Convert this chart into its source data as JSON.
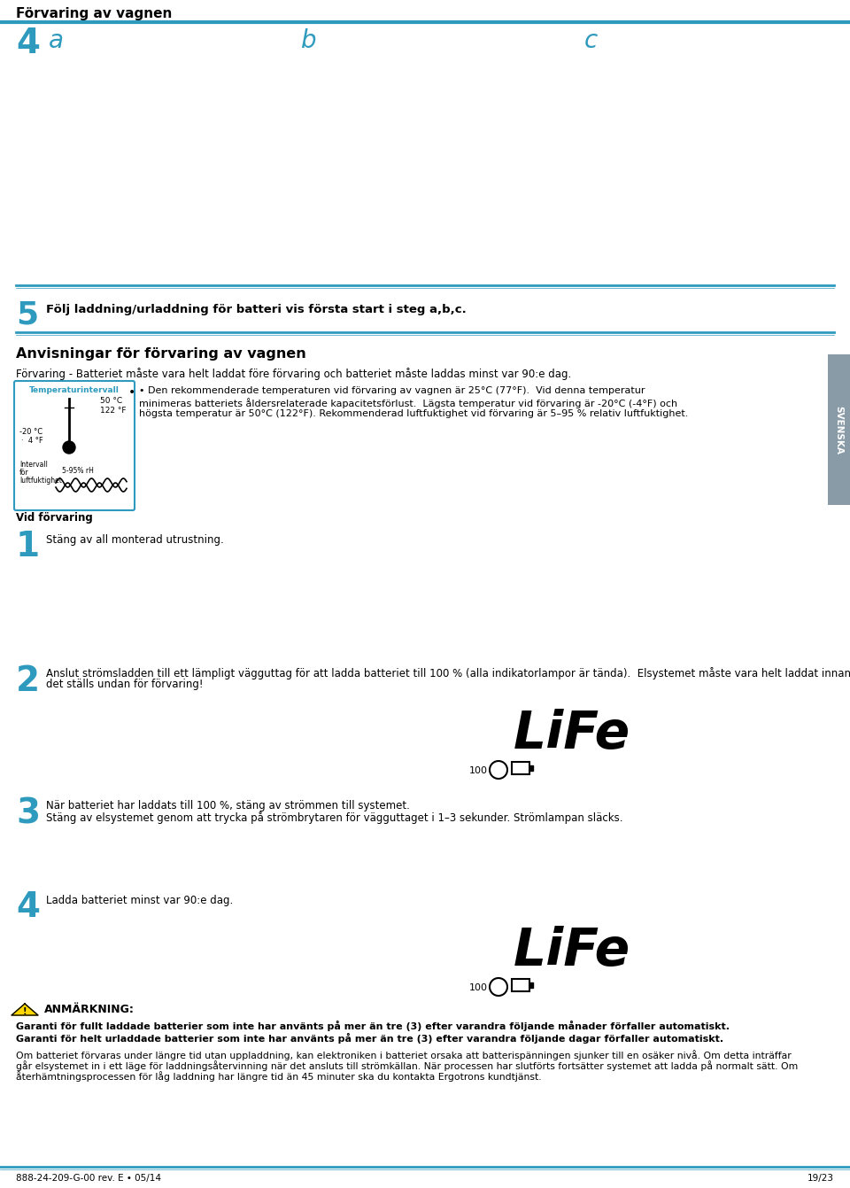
{
  "page_title": "Förvaring av vagnen",
  "header_line_color": "#2E9BBE",
  "bg_color": "#ffffff",
  "accent_color": "#2E9BBE",
  "number_color": "#2E9BBE",
  "svenska_color": "#8a9ba8",
  "step4_label": "4",
  "step4_a": "a",
  "step4_b": "b",
  "step4_c": "c",
  "step5_num": "5",
  "step5_text": "Följ laddning/urladdning för batteri vis första start i steg a,b,c.",
  "section_title": "Anvisningar för förvaring av vagnen",
  "section_subtitle": "Förvaring - Batteriet måste vara helt laddat före förvaring och batteriet måste laddas minst var 90:e dag.",
  "tempbox_title": "Temperaturintervall",
  "temp_line1": "• Den rekommenderade temperaturen vid förvaring av vagnen är 25°C (77°F).  Vid denna temperatur",
  "temp_line2": "minimeras batteriets åldersrelaterade kapacitetsförlust.  Lägsta temperatur vid förvaring är -20°C (-4°F) och",
  "temp_line3": "högsta temperatur är 50°C (122°F). Rekommenderad luftfuktighet vid förvaring är 5–95 % relativ luftfuktighet.",
  "vid_forvaring": "Vid förvaring",
  "step1_num": "1",
  "step1_text": "Stäng av all monterad utrustning.",
  "step2_num": "2",
  "step2_line1": "Anslut strömsladden till ett lämpligt vägguttag för att ladda batteriet till 100 % (alla indikatorlampor är tända).  Elsystemet måste vara helt laddat innan",
  "step2_line2": "det ställs undan för förvaring!",
  "life_text": "LiFe",
  "hundred_text": "100",
  "step3_num": "3",
  "step3_line1": "När batteriet har laddats till 100 %, stäng av strömmen till systemet.",
  "step3_line2": "Stäng av elsystemet genom att trycka på strömbrytaren för vägguttaget i 1–3 sekunder. Strömlampan släcks.",
  "step4b_num": "4",
  "step4b_text": "Ladda batteriet minst var 90:e dag.",
  "warning_title": "ANMÄRKNING:",
  "warning_text1": "Garanti för fullt laddade batterier som inte har använts på mer än tre (3) efter varandra följande månader förfaller automatiskt.",
  "warning_text2": "Garanti för helt urladdade batterier som inte har använts på mer än tre (3) efter varandra följande dagar förfaller automatiskt.",
  "warning_text3a": "Om batteriet förvaras under längre tid utan uppladdning, kan elektroniken i batteriet orsaka att batterispänningen sjunker till en osäker nivå. Om detta inträffar",
  "warning_text3b": "går elsystemet in i ett läge för laddningsåtervinning när det ansluts till strömkällan. När processen har slutförts fortsätter systemet att ladda på normalt sätt. Om",
  "warning_text3c": "återhämtningsprocessen för låg laddning har längre tid än 45 minuter ska du kontakta Ergotrons kundtjänst.",
  "footer_left": "888-24-209-G-00 rev. E • 05/14",
  "footer_right": "19/23",
  "svenska_text": "SVENSKA"
}
